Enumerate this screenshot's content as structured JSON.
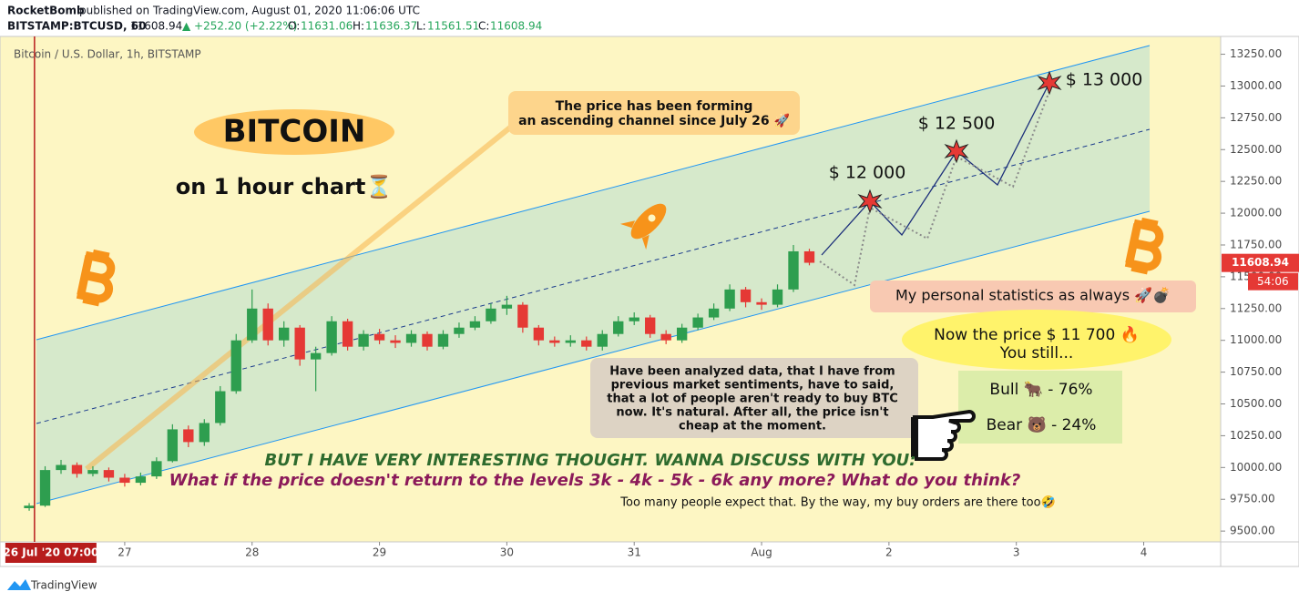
{
  "header": {
    "publisher": "RocketBomb",
    "published": "published on TradingView.com, August 01, 2020 11:06:06 UTC",
    "symbol": "BITSTAMP:BTCUSD, 60",
    "price": "11608.94",
    "change": "▲ +252.20 (+2.22%)",
    "o_label": "O:",
    "o": "11631.06",
    "h_label": "H:",
    "h": "11636.37",
    "l_label": "L:",
    "l": "11561.51",
    "c_label": "C:",
    "c": "11608.94"
  },
  "footer": "TradingView",
  "chart_data": {
    "type": "candlestick",
    "title": "Bitcoin / U.S. Dollar, 1h, BITSTAMP",
    "up_color": "#2e9e4f",
    "down_color": "#e53935",
    "xlim": [
      "2020-07-26T00:30",
      "2020-08-04T14:30"
    ],
    "xticks": [
      {
        "value": "2020-07-27T00:00",
        "label": "27"
      },
      {
        "value": "2020-07-28T00:00",
        "label": "28"
      },
      {
        "value": "2020-07-29T00:00",
        "label": "29"
      },
      {
        "value": "2020-07-30T00:00",
        "label": "30"
      },
      {
        "value": "2020-07-31T00:00",
        "label": "31"
      },
      {
        "value": "2020-08-01T00:00",
        "label": "Aug"
      },
      {
        "value": "2020-08-02T00:00",
        "label": "2"
      },
      {
        "value": "2020-08-03T00:00",
        "label": "3"
      },
      {
        "value": "2020-08-04T00:00",
        "label": "4"
      }
    ],
    "crosshair": {
      "value": "2020-07-26T07:00",
      "label": "26 Jul '20  07:00"
    },
    "ylim": [
      9415,
      13390
    ],
    "yticks": [
      {
        "value": 9500,
        "label": "9500.00"
      },
      {
        "value": 9750,
        "label": "9750.00"
      },
      {
        "value": 10000,
        "label": "10000.00"
      },
      {
        "value": 10250,
        "label": "10250.00"
      },
      {
        "value": 10500,
        "label": "10500.00"
      },
      {
        "value": 10750,
        "label": "10750.00"
      },
      {
        "value": 11000,
        "label": "11000.00"
      },
      {
        "value": 11250,
        "label": "11250.00"
      },
      {
        "value": 11500,
        "label": "11500.00"
      },
      {
        "value": 11750,
        "label": "11750.00"
      },
      {
        "value": 12000,
        "label": "12000.00"
      },
      {
        "value": 12250,
        "label": "12250.00"
      },
      {
        "value": 12500,
        "label": "12500.00"
      },
      {
        "value": 12750,
        "label": "12750.00"
      },
      {
        "value": 13000,
        "label": "13000.00"
      },
      {
        "value": 13250,
        "label": "13250.00"
      }
    ],
    "last_price": 11608.94,
    "countdown": "54:06",
    "x": [
      "2020-07-26T06:00",
      "2020-07-26T09:00",
      "2020-07-26T12:00",
      "2020-07-26T15:00",
      "2020-07-26T18:00",
      "2020-07-26T21:00",
      "2020-07-27T00:00",
      "2020-07-27T03:00",
      "2020-07-27T06:00",
      "2020-07-27T09:00",
      "2020-07-27T12:00",
      "2020-07-27T15:00",
      "2020-07-27T18:00",
      "2020-07-27T21:00",
      "2020-07-28T00:00",
      "2020-07-28T03:00",
      "2020-07-28T06:00",
      "2020-07-28T09:00",
      "2020-07-28T12:00",
      "2020-07-28T15:00",
      "2020-07-28T18:00",
      "2020-07-28T21:00",
      "2020-07-29T00:00",
      "2020-07-29T03:00",
      "2020-07-29T06:00",
      "2020-07-29T09:00",
      "2020-07-29T12:00",
      "2020-07-29T15:00",
      "2020-07-29T18:00",
      "2020-07-29T21:00",
      "2020-07-30T00:00",
      "2020-07-30T03:00",
      "2020-07-30T06:00",
      "2020-07-30T09:00",
      "2020-07-30T12:00",
      "2020-07-30T15:00",
      "2020-07-30T18:00",
      "2020-07-30T21:00",
      "2020-07-31T00:00",
      "2020-07-31T03:00",
      "2020-07-31T06:00",
      "2020-07-31T09:00",
      "2020-07-31T12:00",
      "2020-07-31T15:00",
      "2020-07-31T18:00",
      "2020-07-31T21:00",
      "2020-08-01T00:00",
      "2020-08-01T03:00",
      "2020-08-01T06:00",
      "2020-08-01T09:00"
    ],
    "open": [
      9680,
      9700,
      9980,
      10020,
      9950,
      9980,
      9920,
      9880,
      9930,
      10050,
      10300,
      10200,
      10350,
      10600,
      11000,
      11250,
      11000,
      11100,
      10850,
      10900,
      11150,
      10950,
      11050,
      11000,
      10980,
      11050,
      10950,
      11050,
      11100,
      11150,
      11250,
      11280,
      11100,
      11000,
      10980,
      11000,
      10950,
      11050,
      11150,
      11180,
      11050,
      11000,
      11100,
      11180,
      11250,
      11400,
      11300,
      11280,
      11400,
      11700
    ],
    "high": [
      9720,
      10010,
      10060,
      10040,
      10010,
      10000,
      9950,
      9960,
      10080,
      10340,
      10330,
      10380,
      10640,
      11050,
      11400,
      11290,
      11150,
      11120,
      10950,
      11190,
      11170,
      11080,
      11090,
      11040,
      11080,
      11070,
      11080,
      11140,
      11190,
      11290,
      11350,
      11300,
      11120,
      11030,
      11040,
      11030,
      11080,
      11190,
      11220,
      11200,
      11080,
      11130,
      11210,
      11290,
      11440,
      11420,
      11330,
      11440,
      11750,
      11720
    ],
    "low": [
      9660,
      9690,
      9950,
      9920,
      9930,
      9890,
      9850,
      9860,
      9910,
      10040,
      10160,
      10170,
      10330,
      10580,
      10980,
      10960,
      10950,
      10800,
      10600,
      10880,
      10920,
      10920,
      10970,
      10940,
      10950,
      10920,
      10930,
      11020,
      11080,
      11130,
      11200,
      11060,
      10960,
      10950,
      10950,
      10920,
      10920,
      11030,
      11120,
      11020,
      10970,
      10980,
      11080,
      11160,
      11230,
      11260,
      11240,
      11260,
      11380,
      11590
    ],
    "close": [
      9700,
      9980,
      10020,
      9950,
      9980,
      9920,
      9880,
      9930,
      10050,
      10300,
      10200,
      10350,
      10600,
      11000,
      11250,
      11000,
      11100,
      10850,
      10900,
      11150,
      10950,
      11050,
      11000,
      10980,
      11050,
      10950,
      11050,
      11100,
      11150,
      11250,
      11280,
      11100,
      11000,
      10980,
      11000,
      10950,
      11050,
      11150,
      11180,
      11050,
      11000,
      11100,
      11180,
      11250,
      11400,
      11300,
      11280,
      11400,
      11700,
      11610
    ]
  },
  "annotations": {
    "bitcoin": "BITCOIN",
    "timeframe": "on 1 hour chart⏳",
    "channel_note": [
      "The price has been forming",
      "an ascending channel since July 26 🚀"
    ],
    "target1": "$ 12 000",
    "target2": "$ 12 500",
    "target3": "$ 13 000",
    "stats": "My personal statistics as always 🚀💣",
    "now_price": "Now the price $ 11 700 🔥",
    "you_still": "You still...",
    "bull": "Bull 🐂 -  76%",
    "bear": "Bear 🐻 - 24%",
    "analysis": [
      "Have been analyzed data, that I have from",
      "previous market sentiments, have to said,",
      "that a lot of people aren't ready to buy BTC",
      "now. It's natural. After all, the price isn't",
      "cheap at the moment."
    ],
    "thought": "BUT I HAVE  VERY INTERESTING THOUGHT. WANNA DISCUSS WITH YOU:",
    "question": "What if the price doesn't return to the levels 3k - 4k - 5k - 6k any more? What do you think?",
    "orders": "Too many people expect that. By the way, my buy orders are there too🤣"
  }
}
